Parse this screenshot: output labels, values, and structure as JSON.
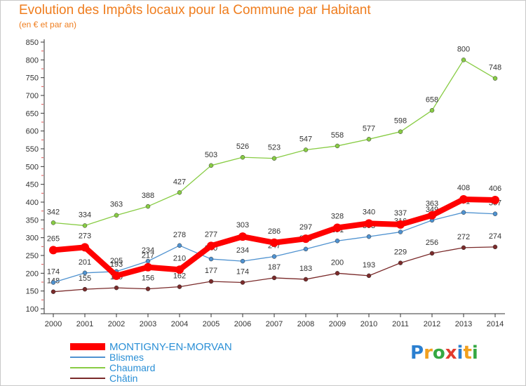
{
  "header": {
    "title": "Evolution des Impôts locaux pour la Commune par Habitant",
    "subtitle": "(en € et par an)"
  },
  "logo": {
    "text": "Proxiti",
    "colors": [
      "#2a7fd0",
      "#f2a01e",
      "#35a843",
      "#e23b2e",
      "#2a7fd0",
      "#f2a01e",
      "#35a843"
    ]
  },
  "chart_data": {
    "type": "line",
    "title": "Evolution des Impôts locaux pour la Commune par Habitant",
    "subtitle": "(en € et par an)",
    "xlabel": "",
    "ylabel": "",
    "x": [
      "2000",
      "2001",
      "2002",
      "2003",
      "2004",
      "2005",
      "2006",
      "2007",
      "2008",
      "2009",
      "2010",
      "2011",
      "2012",
      "2013",
      "2014"
    ],
    "ylim": [
      100,
      850
    ],
    "yticks": [
      100,
      150,
      200,
      250,
      300,
      350,
      400,
      450,
      500,
      550,
      600,
      650,
      700,
      750,
      800,
      850
    ],
    "grid": false,
    "legend": "bottom-left",
    "series": [
      {
        "name": "MONTIGNY-EN-MORVAN",
        "color": "#ff0000",
        "values": [
          265,
          273,
          193,
          217,
          210,
          277,
          303,
          286,
          297,
          328,
          340,
          337,
          363,
          408,
          406
        ],
        "labels": [
          "265",
          "273",
          "193",
          "217",
          "210",
          "277",
          "303",
          "286",
          "297",
          "328",
          "340",
          "337",
          "363",
          "408",
          "406"
        ]
      },
      {
        "name": "Blismes",
        "color": "#4f92d0",
        "values": [
          174,
          201,
          205,
          234,
          278,
          240,
          234,
          247,
          268,
          291,
          303,
          316,
          349,
          371,
          367
        ],
        "labels": [
          "174",
          "201",
          "205",
          "234",
          "278",
          "240",
          "234",
          "247",
          "268",
          "291",
          "303",
          "316",
          "349",
          "371",
          "367"
        ]
      },
      {
        "name": "Chaumard",
        "color": "#88cc44",
        "values": [
          342,
          334,
          363,
          388,
          427,
          503,
          526,
          523,
          547,
          558,
          577,
          598,
          658,
          800,
          748
        ],
        "labels": [
          "342",
          "334",
          "363",
          "388",
          "427",
          "503",
          "526",
          "523",
          "547",
          "558",
          "577",
          "598",
          "658",
          "800",
          "748"
        ]
      },
      {
        "name": "Châtin",
        "color": "#7a2a2a",
        "values": [
          148,
          155,
          159,
          156,
          162,
          177,
          174,
          187,
          183,
          200,
          193,
          229,
          256,
          272,
          274
        ],
        "labels": [
          "148",
          "155",
          "159",
          "156",
          "162",
          "177",
          "174",
          "187",
          "183",
          "200",
          "193",
          "229",
          "256",
          "272",
          "274"
        ]
      }
    ]
  }
}
